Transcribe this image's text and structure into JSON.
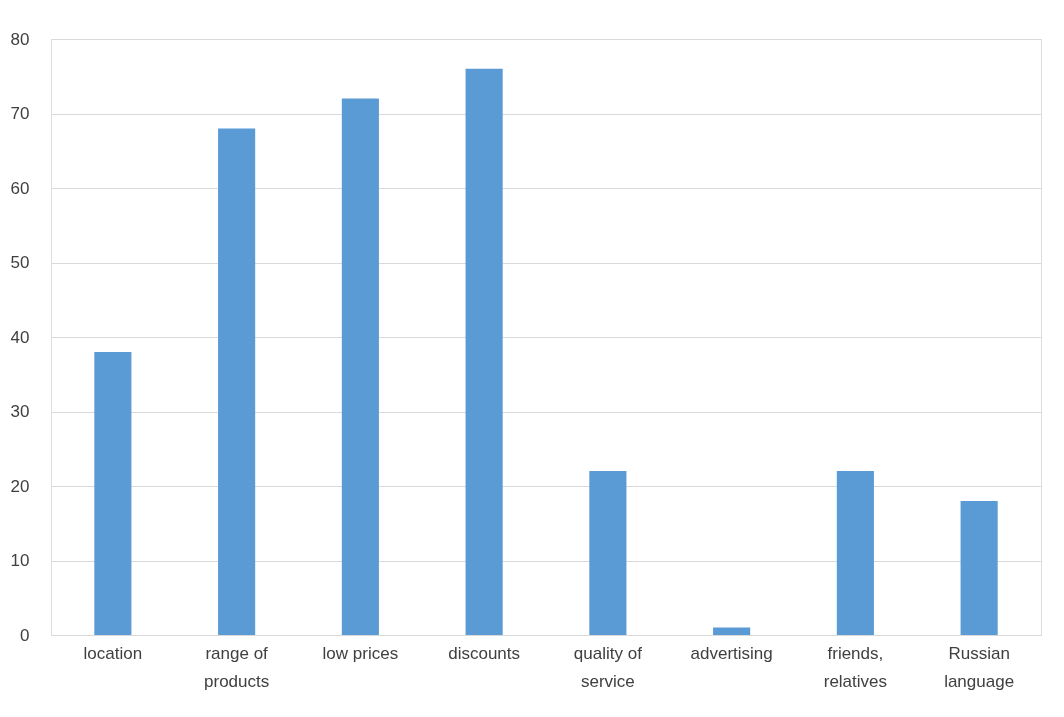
{
  "chart_data": {
    "type": "bar",
    "categories": [
      "location",
      "range of products",
      "low prices",
      "discounts",
      "quality of service",
      "advertising",
      "friends, relatives",
      "Russian language"
    ],
    "values": [
      38,
      68,
      72,
      76,
      22,
      1,
      22,
      18
    ],
    "color": "#5b9bd5",
    "ylim": [
      0,
      80
    ],
    "yticks": [
      0,
      10,
      20,
      30,
      40,
      50,
      60,
      70,
      80
    ],
    "grid": "y"
  }
}
